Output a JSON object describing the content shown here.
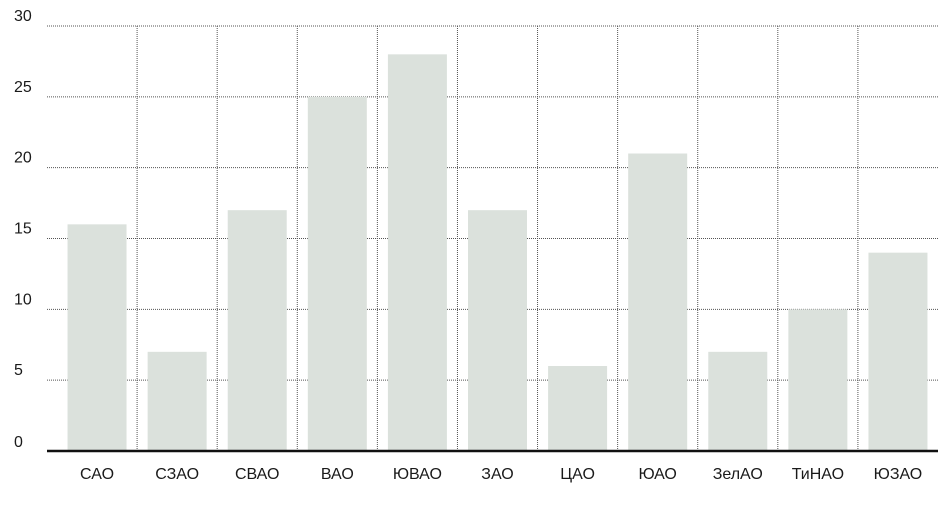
{
  "chart_data": {
    "type": "bar",
    "title": "",
    "xlabel": "",
    "ylabel": "",
    "categories": [
      "САО",
      "СЗАО",
      "СВАО",
      "ВАО",
      "ЮВАО",
      "ЗАО",
      "ЦАО",
      "ЮАО",
      "ЗелАО",
      "ТиНАО",
      "ЮЗАО"
    ],
    "values": [
      16,
      7,
      17,
      25,
      28,
      17,
      6,
      21,
      7,
      10,
      14
    ],
    "ylim": [
      0,
      30
    ],
    "yticks": [
      "0",
      "5",
      "10",
      "15",
      "20",
      "25",
      "30"
    ],
    "grid": true,
    "colors": {
      "bar": "#dbe1dc",
      "grid": "#555555",
      "axis": "#111111",
      "text": "#1a1a1a"
    }
  }
}
